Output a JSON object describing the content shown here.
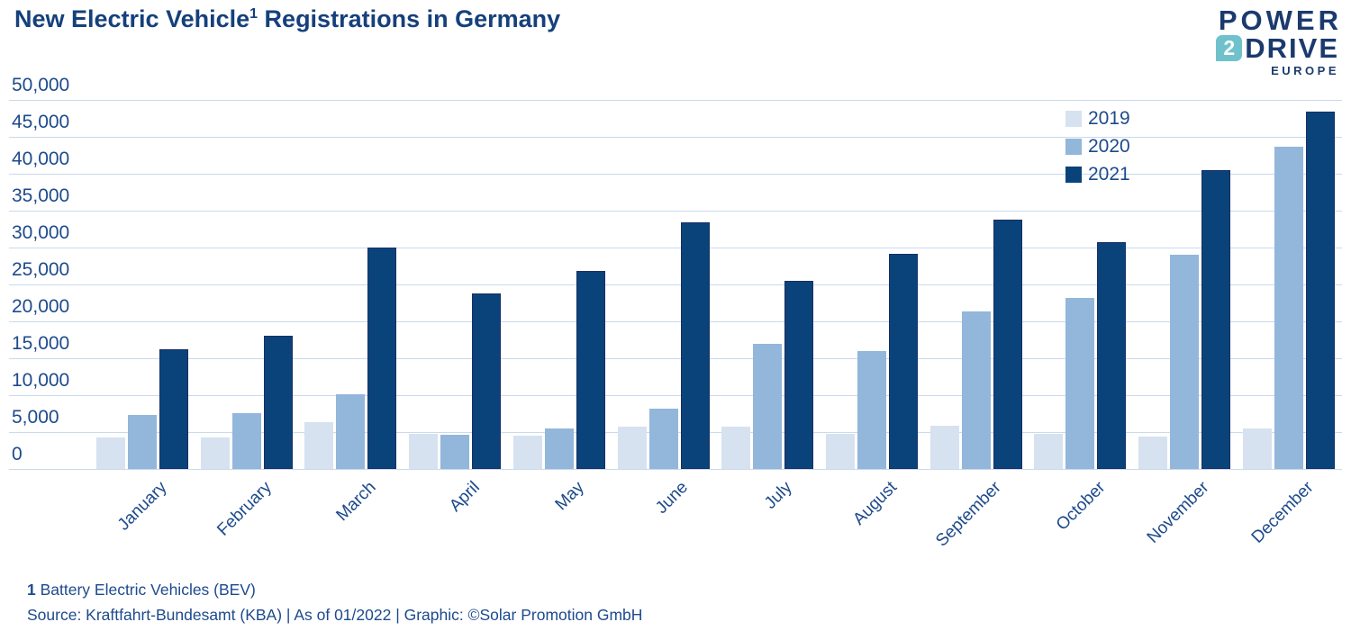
{
  "header": {
    "title_prefix": "New Electric Vehicle",
    "title_superscript": "1",
    "title_suffix": " Registrations in Germany"
  },
  "logo": {
    "line1": "POWER",
    "badge": "2",
    "line2": "DRIVE",
    "line3": "EUROPE",
    "navy": "#1b3a6e",
    "teal": "#6fc2cc"
  },
  "chart_data": {
    "type": "bar",
    "title": "New Electric Vehicle Registrations in Germany",
    "categories": [
      "January",
      "February",
      "March",
      "April",
      "May",
      "June",
      "July",
      "August",
      "September",
      "October",
      "November",
      "December"
    ],
    "series": [
      {
        "name": "2019",
        "color": "#d7e2f0",
        "values": [
          4300,
          4300,
          6300,
          4700,
          4500,
          5700,
          5700,
          4800,
          5800,
          4800,
          4400,
          5500
        ]
      },
      {
        "name": "2020",
        "color": "#93b6db",
        "values": [
          7300,
          7600,
          10100,
          4600,
          5500,
          8200,
          16900,
          16000,
          21300,
          23200,
          29000,
          43700
        ]
      },
      {
        "name": "2021",
        "color": "#0a4379",
        "border_color": "#1a2f66",
        "values": [
          16200,
          18100,
          30000,
          23800,
          26800,
          33400,
          25500,
          29100,
          33800,
          30700,
          40500,
          48400
        ]
      }
    ],
    "ylim": [
      0,
      50000
    ],
    "ytick_step": 5000,
    "ytick_labels": [
      "0",
      "5,000",
      "10,000",
      "15,000",
      "20,000",
      "25,000",
      "30,000",
      "35,000",
      "40,000",
      "45,000",
      "50,000"
    ],
    "xlabel": "",
    "ylabel": "",
    "grid": true,
    "legend_position": "top-right",
    "legend_entries": [
      "2019",
      "2020",
      "2021"
    ],
    "axis_text_color": "#1d4a8c",
    "gridline_color": "#c9daec"
  },
  "footnotes": {
    "note_number": "1",
    "note_text": " Battery Electric Vehicles (BEV)",
    "source": "Source: Kraftfahrt-Bundesamt (KBA) | As of 01/2022 | Graphic: ©Solar Promotion GmbH"
  }
}
